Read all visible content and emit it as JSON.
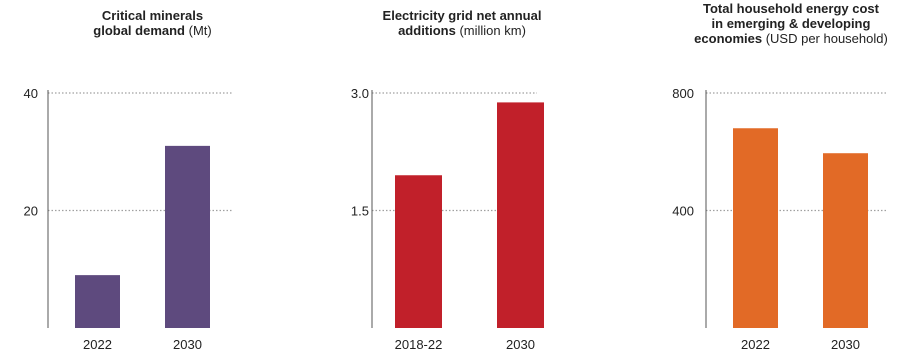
{
  "chart_data": [
    {
      "type": "bar",
      "title": "Critical minerals global demand",
      "title_lines": [
        "Critical minerals",
        "global demand"
      ],
      "unit": "(Mt)",
      "categories": [
        "2022",
        "2030"
      ],
      "values": [
        9,
        31
      ],
      "yticks": [
        {
          "value": 20,
          "label": "20"
        },
        {
          "value": 40,
          "label": "40"
        }
      ],
      "ylim": [
        0,
        40
      ],
      "color": "#5e4a7e",
      "grid": true
    },
    {
      "type": "bar",
      "title": "Electricity grid net annual additions",
      "title_lines": [
        "Electricity grid net annual",
        "additions"
      ],
      "unit": "(million km)",
      "categories": [
        "2018-22",
        "2030"
      ],
      "values": [
        1.95,
        2.88
      ],
      "yticks": [
        {
          "value": 1.5,
          "label": "1.5"
        },
        {
          "value": 3.0,
          "label": "3.0"
        }
      ],
      "ylim": [
        0,
        3.0
      ],
      "color": "#c1202a",
      "grid": true
    },
    {
      "type": "bar",
      "title": "Total household energy cost in emerging & developing economies",
      "title_lines": [
        "Total household energy cost",
        "in emerging & developing",
        "economies"
      ],
      "unit": "(USD per household)",
      "categories": [
        "2022",
        "2030"
      ],
      "values": [
        680,
        595
      ],
      "yticks": [
        {
          "value": 400,
          "label": "400"
        },
        {
          "value": 800,
          "label": "800"
        }
      ],
      "ylim": [
        0,
        800
      ],
      "color": "#e26a26",
      "grid": true
    }
  ]
}
